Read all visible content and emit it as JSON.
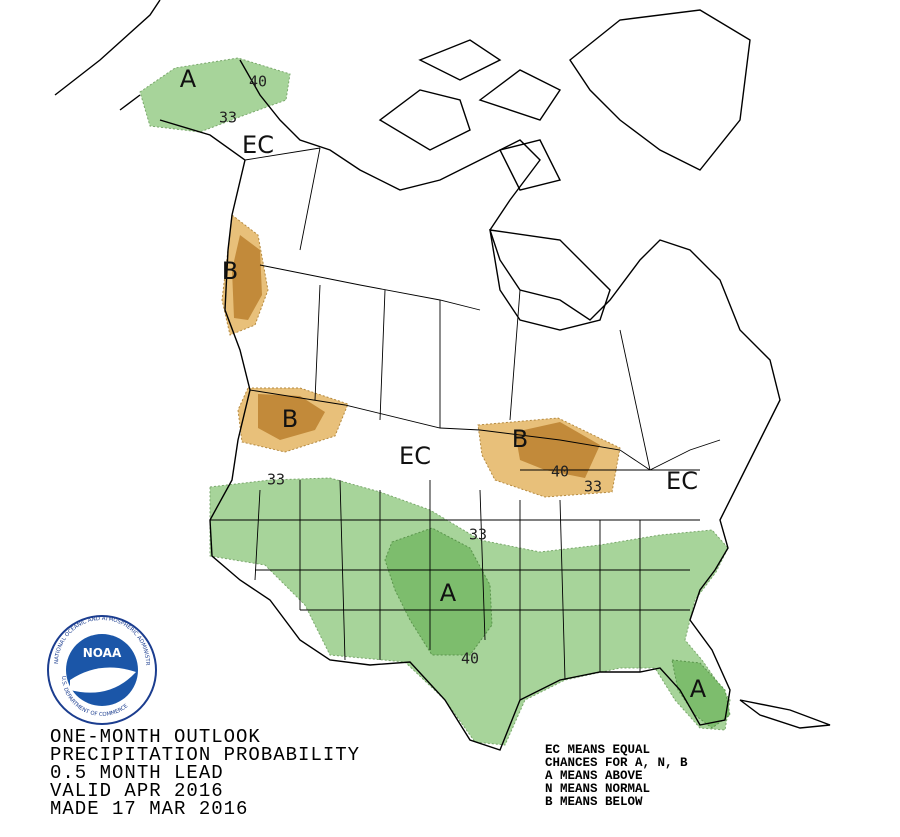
{
  "map_labels": [
    "A",
    "40",
    "33",
    "EC",
    "B",
    "B",
    "EC",
    "B",
    "40",
    "33",
    "EC",
    "33",
    "33",
    "A",
    "40",
    "A"
  ],
  "logo": {
    "name": "NOAA",
    "ring_top": "NATIONAL OCEANIC AND ATMOSPHERIC ADMINISTRATION",
    "ring_bottom": "U.S. DEPARTMENT OF COMMERCE"
  },
  "title_lines": [
    "ONE-MONTH OUTLOOK",
    "PRECIPITATION PROBABILITY",
    "0.5 MONTH LEAD",
    "VALID APR 2016",
    "MADE 17 MAR 2016"
  ],
  "legend_lines": [
    "EC MEANS EQUAL",
    "CHANCES FOR A, N, B",
    "A MEANS ABOVE",
    "N MEANS NORMAL",
    "B MEANS BELOW"
  ]
}
